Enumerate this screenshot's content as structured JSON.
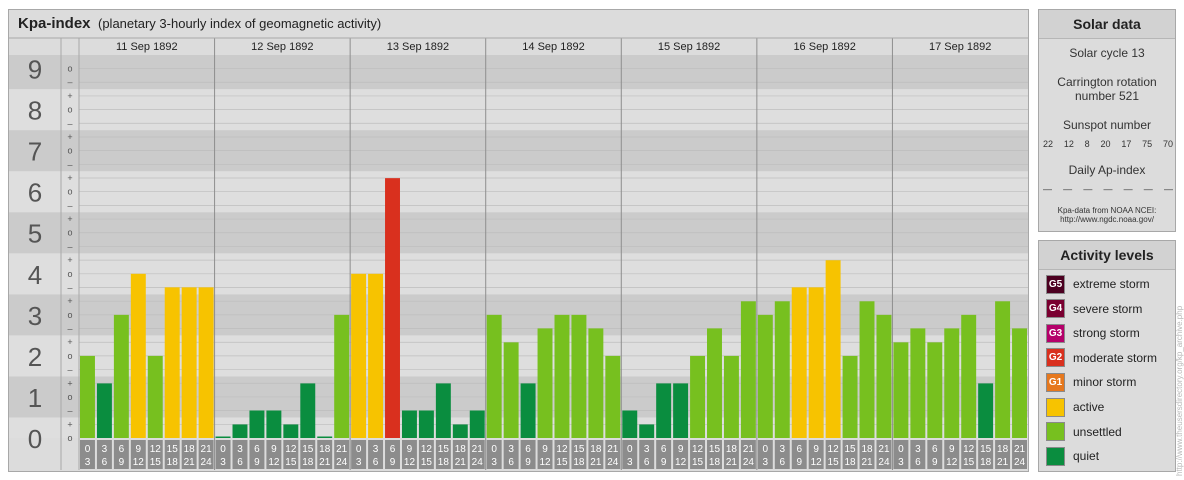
{
  "header": {
    "title": "Kpa-index",
    "subtitle": "(planetary 3-hourly index of geomagnetic activity)"
  },
  "chart_data": {
    "type": "bar",
    "title": "Kpa-index",
    "subtitle": "(planetary 3-hourly index of geomagnetic activity)",
    "ylim": [
      0,
      9.33
    ],
    "y_ticks": [
      "0",
      "1",
      "2",
      "3",
      "4",
      "5",
      "6",
      "7",
      "8",
      "9"
    ],
    "sub_ticks": [
      "+",
      "o",
      "–"
    ],
    "days": [
      "11 Sep 1892",
      "12 Sep 1892",
      "13 Sep 1892",
      "14 Sep 1892",
      "15 Sep 1892",
      "16 Sep 1892",
      "17 Sep 1892"
    ],
    "interval_start_labels": [
      "0",
      "3",
      "6",
      "9",
      "12",
      "15",
      "18",
      "21"
    ],
    "interval_end_labels": [
      "3",
      "6",
      "9",
      "12",
      "15",
      "18",
      "21",
      "24"
    ],
    "series": [
      {
        "values": [
          2,
          1.33,
          3,
          4,
          2,
          3.67,
          3.67,
          3.67,
          0,
          0.33,
          0.67,
          0.67,
          0.33,
          1.33,
          0,
          3,
          4,
          4,
          6.33,
          0.67,
          0.67,
          1.33,
          0.33,
          0.67,
          3,
          2.33,
          1.33,
          2.67,
          3,
          3,
          2.67,
          2,
          0.67,
          0.33,
          1.33,
          1.33,
          2,
          2.67,
          2,
          3.33,
          3,
          3.33,
          3.67,
          3.67,
          4.33,
          2,
          3.33,
          3,
          2.33,
          2.67,
          2.33,
          2.67,
          3,
          1.33,
          3.33,
          2.67
        ]
      }
    ],
    "colors": {
      "quiet": "#0a8d3f",
      "unsettled": "#77c01f",
      "active": "#f7c300",
      "G1": "#e6781e",
      "G2": "#d9301e",
      "G3": "#b5006a",
      "G4": "#7a0030",
      "G5": "#4c0020"
    },
    "grid": true
  },
  "solar": {
    "title": "Solar data",
    "solar_cycle": "Solar cycle 13",
    "carrington_line1": "Carrington rotation",
    "carrington_line2": "number 521",
    "sunspot_label": "Sunspot number",
    "sunspot_values": [
      "22",
      "12",
      "8",
      "20",
      "17",
      "75",
      "70"
    ],
    "ap_label": "Daily Ap-index",
    "ap_values": [
      "—",
      "—",
      "—",
      "—",
      "—",
      "—",
      "—"
    ],
    "source_line1": "Kpa-data from NOAA NCEI:",
    "source_line2": "http://www.ngdc.noaa.gov/"
  },
  "activity": {
    "title": "Activity levels",
    "levels": [
      {
        "code": "G5",
        "label": "extreme storm",
        "color": "#4c0020"
      },
      {
        "code": "G4",
        "label": "severe storm",
        "color": "#7a0030"
      },
      {
        "code": "G3",
        "label": "strong storm",
        "color": "#b5006a"
      },
      {
        "code": "G2",
        "label": "moderate storm",
        "color": "#d9301e"
      },
      {
        "code": "G1",
        "label": "minor storm",
        "color": "#e6781e"
      },
      {
        "code": "",
        "label": "active",
        "color": "#f7c300"
      },
      {
        "code": "",
        "label": "unsettled",
        "color": "#77c01f"
      },
      {
        "code": "",
        "label": "quiet",
        "color": "#0a8d3f"
      }
    ]
  },
  "watermark": "http://www.theusersdirectory.org/kp_archive.php"
}
